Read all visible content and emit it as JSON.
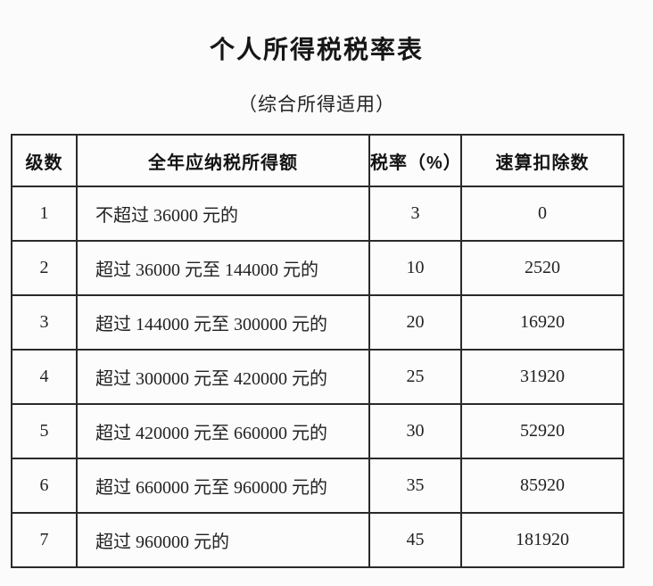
{
  "page": {
    "title": "个人所得税税率表",
    "subtitle": "（综合所得适用）"
  },
  "colors": {
    "background": "#fbfbfb",
    "border": "#2a2a2a",
    "text": "#1e1e1e"
  },
  "table": {
    "headers": [
      "级数",
      "全年应纳税所得额",
      "税率（%）",
      "速算扣除数"
    ],
    "rows": [
      {
        "level": "1",
        "income": "不超过 36000 元的",
        "rate": "3",
        "deduction": "0"
      },
      {
        "level": "2",
        "income": "超过 36000 元至 144000 元的",
        "rate": "10",
        "deduction": "2520"
      },
      {
        "level": "3",
        "income": "超过 144000 元至 300000 元的",
        "rate": "20",
        "deduction": "16920"
      },
      {
        "level": "4",
        "income": "超过 300000 元至 420000 元的",
        "rate": "25",
        "deduction": "31920"
      },
      {
        "level": "5",
        "income": "超过 420000 元至 660000 元的",
        "rate": "30",
        "deduction": "52920"
      },
      {
        "level": "6",
        "income": "超过 660000 元至 960000 元的",
        "rate": "35",
        "deduction": "85920"
      },
      {
        "level": "7",
        "income": "超过 960000 元的",
        "rate": "45",
        "deduction": "181920"
      }
    ]
  }
}
